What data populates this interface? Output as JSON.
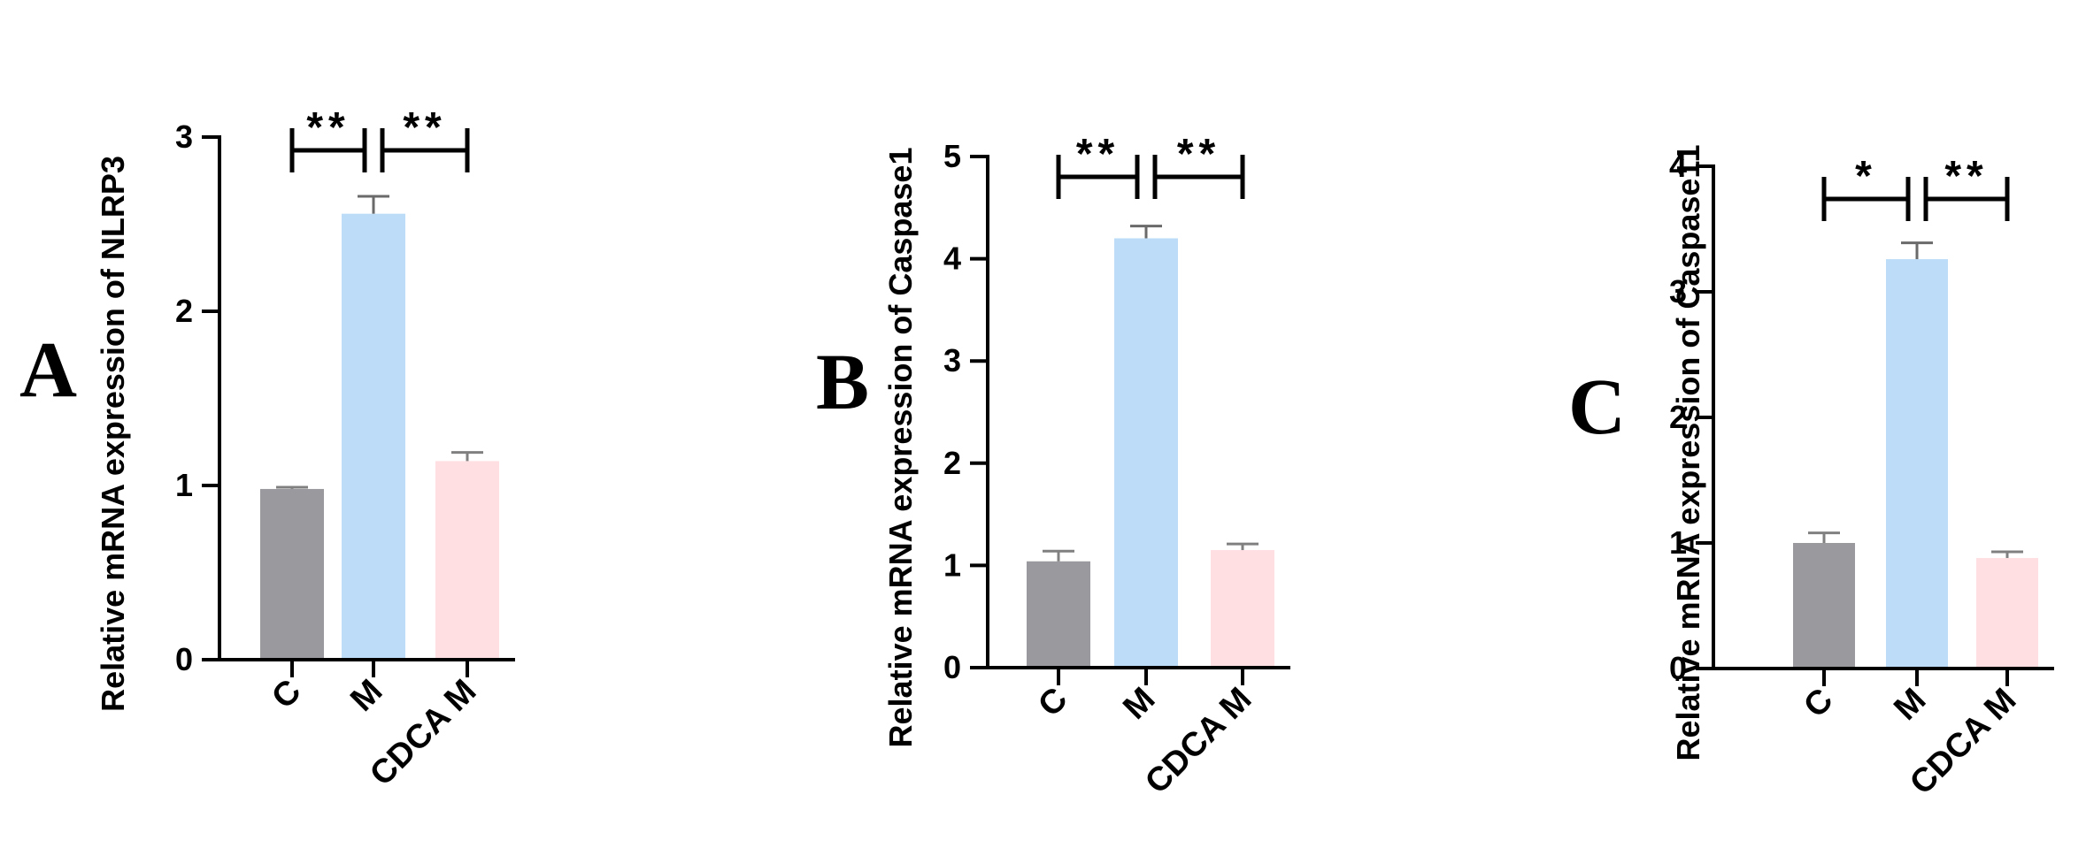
{
  "panels": [
    {
      "letter": "A"
    },
    {
      "letter": "B"
    },
    {
      "letter": "C"
    }
  ],
  "chart_data": [
    {
      "type": "bar",
      "title": "",
      "xlabel": "",
      "ylabel": "Relative mRNA expression of NLRP3",
      "categories": [
        "C",
        "M",
        "CDCA M"
      ],
      "values": [
        0.98,
        2.56,
        1.14
      ],
      "errors": [
        0.01,
        0.1,
        0.05
      ],
      "colors": [
        "#9a999e",
        "#bcdcf8",
        "#ffdfe2"
      ],
      "ylim": [
        0,
        3
      ],
      "yticks": [
        0,
        1,
        2,
        3
      ],
      "significance": [
        {
          "from": 0,
          "to": 1,
          "label": "**"
        },
        {
          "from": 1,
          "to": 2,
          "label": "**"
        }
      ]
    },
    {
      "type": "bar",
      "title": "",
      "xlabel": "",
      "ylabel": "Relative mRNA expression of Caspase1",
      "categories": [
        "C",
        "M",
        "CDCA M"
      ],
      "values": [
        1.04,
        4.2,
        1.15
      ],
      "errors": [
        0.1,
        0.12,
        0.06
      ],
      "colors": [
        "#9a999e",
        "#bcdcf8",
        "#ffdfe2"
      ],
      "ylim": [
        0,
        5
      ],
      "yticks": [
        0,
        1,
        2,
        3,
        4,
        5
      ],
      "significance": [
        {
          "from": 0,
          "to": 1,
          "label": "**"
        },
        {
          "from": 1,
          "to": 2,
          "label": "**"
        }
      ]
    },
    {
      "type": "bar",
      "title": "",
      "xlabel": "",
      "ylabel": "Relative mRNA expression of Caspase11",
      "categories": [
        "C",
        "M",
        "CDCA M"
      ],
      "values": [
        1.0,
        3.26,
        0.88
      ],
      "errors": [
        0.08,
        0.13,
        0.05
      ],
      "colors": [
        "#9a999e",
        "#bcdcf8",
        "#ffdfe2"
      ],
      "ylim": [
        0,
        4
      ],
      "yticks": [
        0,
        1,
        2,
        3,
        4
      ],
      "significance": [
        {
          "from": 0,
          "to": 1,
          "label": "*"
        },
        {
          "from": 1,
          "to": 2,
          "label": "**"
        }
      ]
    }
  ]
}
